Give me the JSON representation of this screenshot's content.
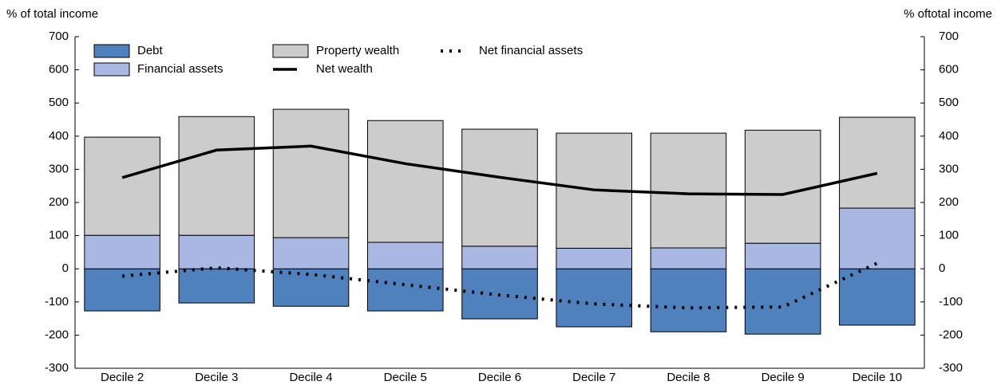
{
  "chart_data": {
    "type": "bar",
    "y_label": "% of total income",
    "y2_label": "% oftotal income",
    "categories": [
      "Decile 2",
      "Decile 3",
      "Decile 4",
      "Decile 5",
      "Decile 6",
      "Decile 7",
      "Decile 8",
      "Decile 9",
      "Decile 10"
    ],
    "series": [
      {
        "name": "Debt",
        "type": "bar",
        "color": "#4f81bd",
        "values": [
          -127,
          -103,
          -113,
          -127,
          -151,
          -175,
          -190,
          -197,
          -170
        ]
      },
      {
        "name": "Financial assets",
        "type": "bar",
        "color": "#a9b8e3",
        "values": [
          101,
          101,
          94,
          80,
          68,
          62,
          63,
          77,
          183
        ]
      },
      {
        "name": "Property wealth",
        "type": "bar",
        "color": "#cccccc",
        "values": [
          296,
          358,
          387,
          367,
          353,
          347,
          346,
          341,
          274
        ]
      },
      {
        "name": "Net wealth",
        "type": "line",
        "color": "#000000",
        "dash": "solid",
        "values": [
          275,
          358,
          370,
          317,
          276,
          238,
          226,
          224,
          288
        ]
      },
      {
        "name": "Net financial assets",
        "type": "line",
        "color": "#000000",
        "dash": "dotted",
        "values": [
          -22,
          3,
          -17,
          -48,
          -79,
          -106,
          -118,
          -115,
          17
        ]
      }
    ],
    "ylim": [
      -300,
      700
    ],
    "yticks": [
      -300,
      -200,
      -100,
      0,
      100,
      200,
      300,
      400,
      500,
      600,
      700
    ],
    "y2lim": [
      -300,
      700
    ],
    "y2ticks": [
      -300,
      -200,
      -100,
      0,
      100,
      200,
      300,
      400,
      500,
      600,
      700
    ]
  }
}
